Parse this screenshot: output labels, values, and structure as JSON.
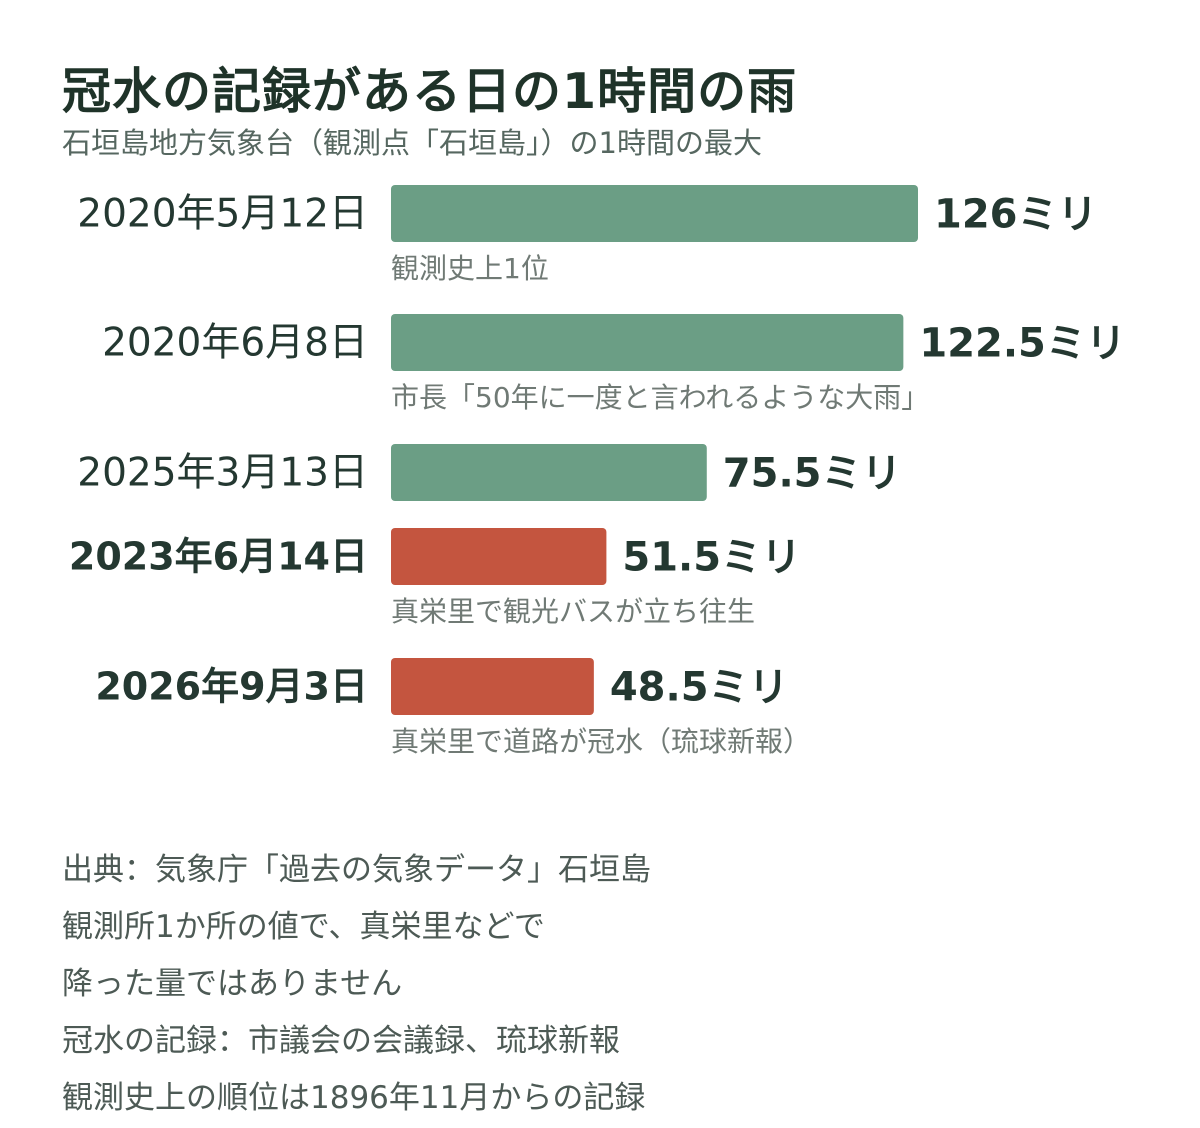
{
  "title": "冠水の記録がある日の1時間の雨",
  "subtitle": "石垣島地方気象台（観測点「石垣島」）の1時間の最大",
  "colors": {
    "green": "#6b9e85",
    "red": "#c4553f",
    "label": "#243831",
    "note": "#707a75"
  },
  "chart_data": {
    "type": "bar",
    "orientation": "horizontal",
    "categories": [
      "2020年5月12日",
      "2020年6月8日",
      "2025年3月13日",
      "2023年6月14日",
      "2026年9月3日"
    ],
    "values": [
      126,
      122.5,
      75.5,
      51.5,
      48.5
    ],
    "unit": "ミリ",
    "value_labels": [
      "126ミリ",
      "122.5ミリ",
      "75.5ミリ",
      "51.5ミリ",
      "48.5ミリ"
    ],
    "bar_colors": [
      "green",
      "green",
      "green",
      "red",
      "red"
    ],
    "bold_category": [
      false,
      false,
      false,
      true,
      true
    ],
    "notes": [
      "観測史上1位",
      "市長「50年に一度と言われるような大雨」",
      "",
      "真栄里で観光バスが立ち往生",
      "真栄里で道路が冠水（琉球新報）"
    ],
    "xlim": [
      0,
      126
    ],
    "grid": false,
    "legend": "none"
  },
  "source_lines": [
    "出典：気象庁「過去の気象データ」石垣島",
    "観測所1か所の値で、真栄里などで",
    "降った量ではありません",
    "冠水の記録：市議会の会議録、琉球新報",
    "観測史上の順位は1896年11月からの記録"
  ]
}
